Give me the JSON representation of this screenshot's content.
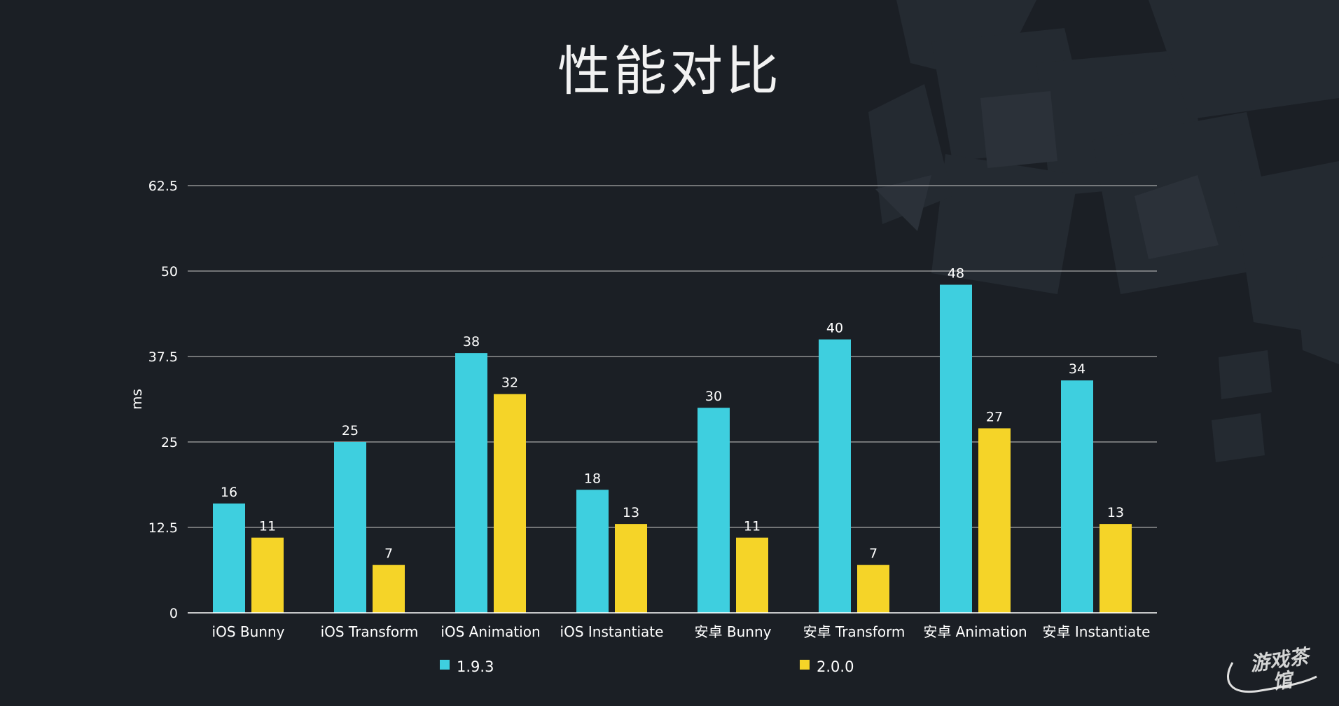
{
  "slide": {
    "title": "性能对比",
    "watermark": "游戏茶馆"
  },
  "colors": {
    "background": "#1b1f25",
    "series_1": "#3ecfdf",
    "series_2": "#f5d428",
    "text": "#ffffff",
    "grid": "#c8c8c8"
  },
  "chart_data": {
    "type": "bar",
    "title": "性能对比",
    "xlabel": "",
    "ylabel": "ms",
    "ylim": [
      0,
      62.5
    ],
    "yticks": [
      "0",
      "12.5",
      "25",
      "37.5",
      "50",
      "62.5"
    ],
    "ytick_values": [
      0,
      12.5,
      25,
      37.5,
      50,
      62.5
    ],
    "grid": true,
    "legend_position": "bottom",
    "categories": [
      "iOS Bunny",
      "iOS Transform",
      "iOS Animation",
      "iOS Instantiate",
      "安卓 Bunny",
      "安卓 Transform",
      "安卓 Animation",
      "安卓 Instantiate"
    ],
    "series": [
      {
        "name": "1.9.3",
        "values": [
          16,
          25,
          38,
          18,
          30,
          40,
          48,
          34
        ]
      },
      {
        "name": "2.0.0",
        "values": [
          11,
          7,
          32,
          13,
          11,
          7,
          27,
          13
        ]
      }
    ]
  }
}
